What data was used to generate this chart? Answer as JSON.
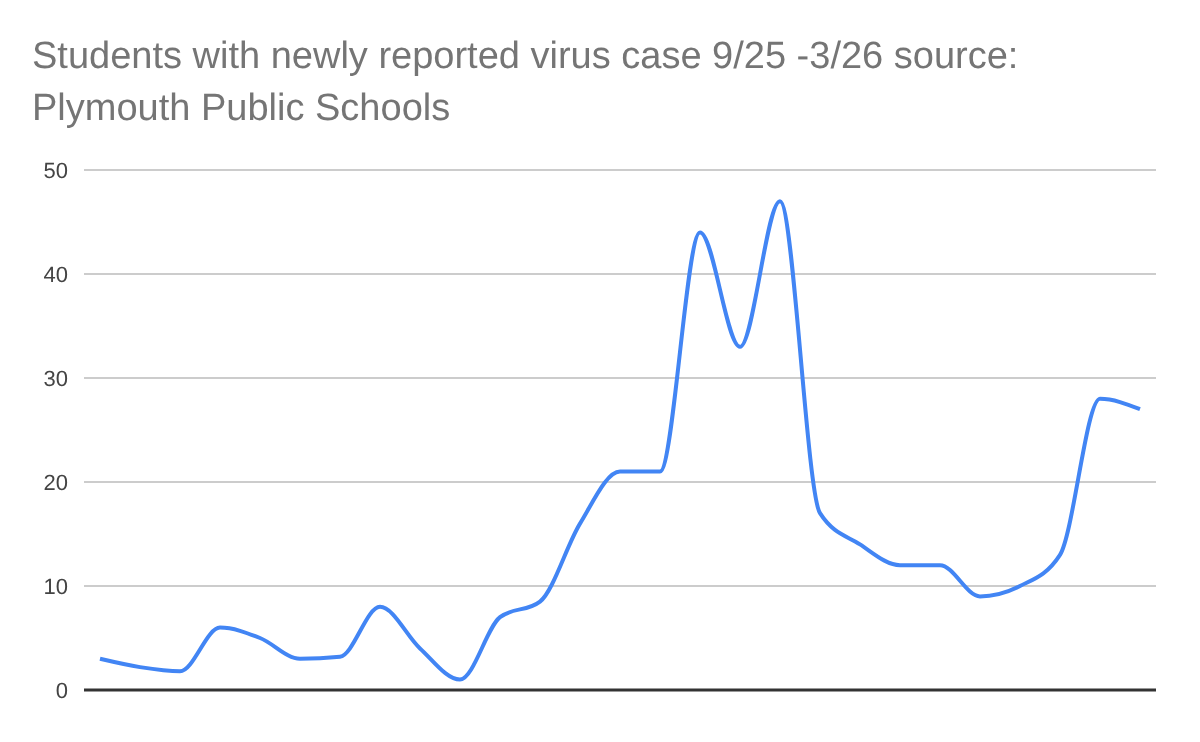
{
  "chart_data": {
    "type": "line",
    "title": "Students with newly reported virus case 9/25 -3/26 source: Plymouth Public Schools",
    "categories": [
      null,
      null,
      null,
      null,
      null,
      null,
      null,
      null,
      null,
      null,
      null,
      null,
      null,
      null,
      null,
      null,
      null,
      null,
      null,
      null,
      null,
      null,
      null,
      null,
      null,
      null,
      null
    ],
    "series": [
      {
        "color": "#4285f4",
        "values": [
          3,
          2.2,
          1.8,
          6,
          5,
          3,
          3.2,
          8,
          4,
          1,
          7,
          8.5,
          16,
          21,
          21,
          44,
          33,
          47,
          17,
          14,
          12,
          12,
          9,
          10,
          13,
          28,
          27
        ]
      }
    ],
    "ylim": [
      0,
      50
    ],
    "yticks": [
      0,
      10,
      20,
      30,
      40,
      50
    ],
    "grid": "y",
    "marker": "none"
  }
}
